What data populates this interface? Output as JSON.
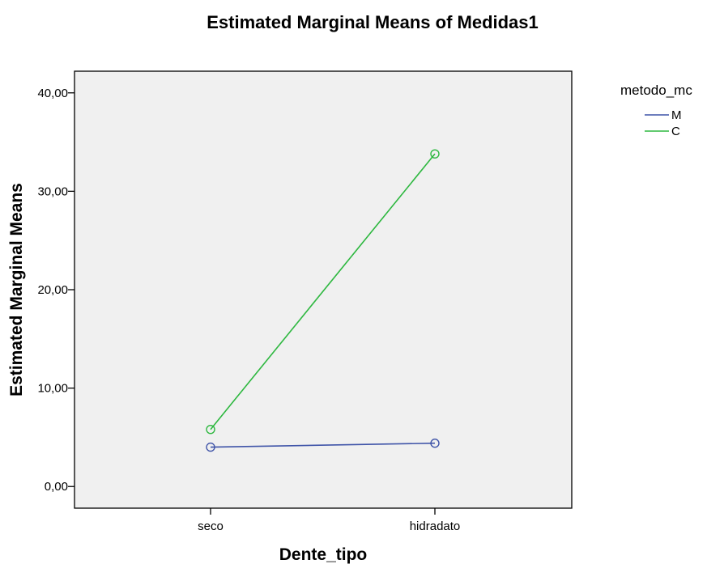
{
  "chart_data": {
    "type": "line",
    "title": "Estimated Marginal Means of Medidas1",
    "xlabel": "Dente_tipo",
    "ylabel": "Estimated Marginal Means",
    "categories": [
      "seco",
      "hidradato"
    ],
    "ylim": [
      -2.2,
      42.2
    ],
    "yticks": [
      0,
      10,
      20,
      30,
      40
    ],
    "ytick_labels": [
      "0,00",
      "10,00",
      "20,00",
      "30,00",
      "40,00"
    ],
    "grid": false,
    "legend": {
      "title": "metodo_mc",
      "position": "top-right-outside"
    },
    "plot_background": "#f0f0f0",
    "series": [
      {
        "name": "M",
        "color": "#3f54a8",
        "values": [
          4.0,
          4.4
        ]
      },
      {
        "name": "C",
        "color": "#2eb840",
        "values": [
          5.8,
          33.8
        ]
      }
    ]
  }
}
